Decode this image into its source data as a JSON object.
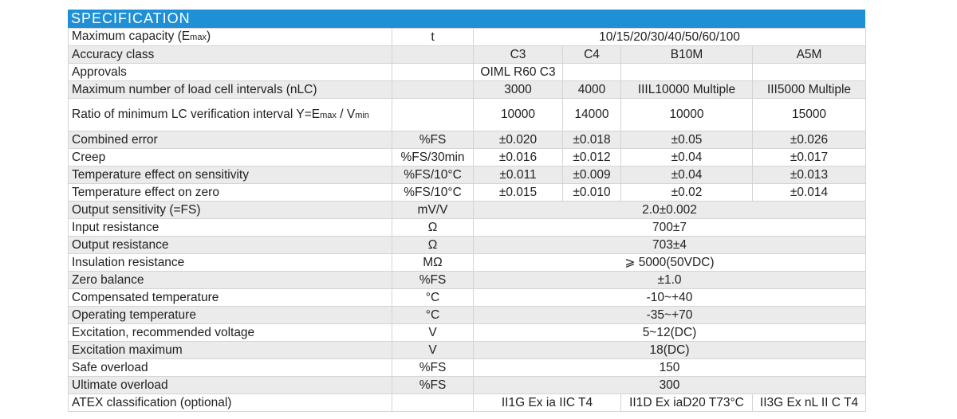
{
  "header": "SPECIFICATION",
  "rows": [
    {
      "label": "Maximum capacity (E",
      "sub": "max",
      "tail": ")",
      "unit": "t",
      "span": "10/15/20/30/40/50/60/100"
    },
    {
      "label": "Accuracy class",
      "unit": "",
      "v": [
        "C3",
        "C4",
        "B10M",
        "A5M"
      ]
    },
    {
      "label": "Approvals",
      "unit": "",
      "v": [
        "OIML R60 C3",
        "",
        "",
        ""
      ]
    },
    {
      "label": "Maximum number of load cell intervals (nLC)",
      "unit": "",
      "v": [
        "3000",
        "4000",
        "IIIL10000 Multiple",
        "III5000 Multiple"
      ]
    },
    {
      "label": "Ratio of minimum LC verification interval Y=E",
      "sub": "max",
      "tail": " / V",
      "sub2": "min",
      "unit": "",
      "v": [
        "10000",
        "14000",
        "10000",
        "15000"
      ]
    },
    {
      "label": "Combined error",
      "unit": "%FS",
      "v": [
        "±0.020",
        "±0.018",
        "±0.05",
        "±0.026"
      ]
    },
    {
      "label": "Creep",
      "unit": "%FS/30min",
      "v": [
        "±0.016",
        "±0.012",
        "±0.04",
        "±0.017"
      ]
    },
    {
      "label": "Temperature effect on sensitivity",
      "unit": "%FS/10°C",
      "v": [
        "±0.011",
        "±0.009",
        "±0.04",
        "±0.013"
      ]
    },
    {
      "label": "Temperature effect on zero",
      "unit": "%FS/10°C",
      "v": [
        "±0.015",
        "±0.010",
        "±0.02",
        "±0.014"
      ]
    },
    {
      "label": "Output sensitivity (=FS)",
      "unit": "mV/V",
      "span": "2.0±0.002"
    },
    {
      "label": "Input resistance",
      "unit": "Ω",
      "span": "700±7"
    },
    {
      "label": "Output resistance",
      "unit": "Ω",
      "span": "703±4"
    },
    {
      "label": "Insulation resistance",
      "unit": "MΩ",
      "span": "⩾ 5000(50VDC)"
    },
    {
      "label": "Zero balance",
      "unit": "%FS",
      "span": "±1.0"
    },
    {
      "label": "Compensated temperature",
      "unit": "°C",
      "span": "-10~+40"
    },
    {
      "label": "Operating temperature",
      "unit": "°C",
      "span": "-35~+70"
    },
    {
      "label": "Excitation, recommended voltage",
      "unit": "V",
      "span": "5~12(DC)"
    },
    {
      "label": "Excitation maximum",
      "unit": "V",
      "span": "18(DC)"
    },
    {
      "label": "Safe overload",
      "unit": "%FS",
      "span": "150"
    },
    {
      "label": "Ultimate overload",
      "unit": "%FS",
      "span": "300"
    },
    {
      "label": "ATEX classification (optional)",
      "unit": "",
      "atex": [
        "II1G Ex ia IIC T4",
        "II1D Ex iaD20 T73°C",
        "II3G Ex nL II C T4"
      ]
    }
  ]
}
